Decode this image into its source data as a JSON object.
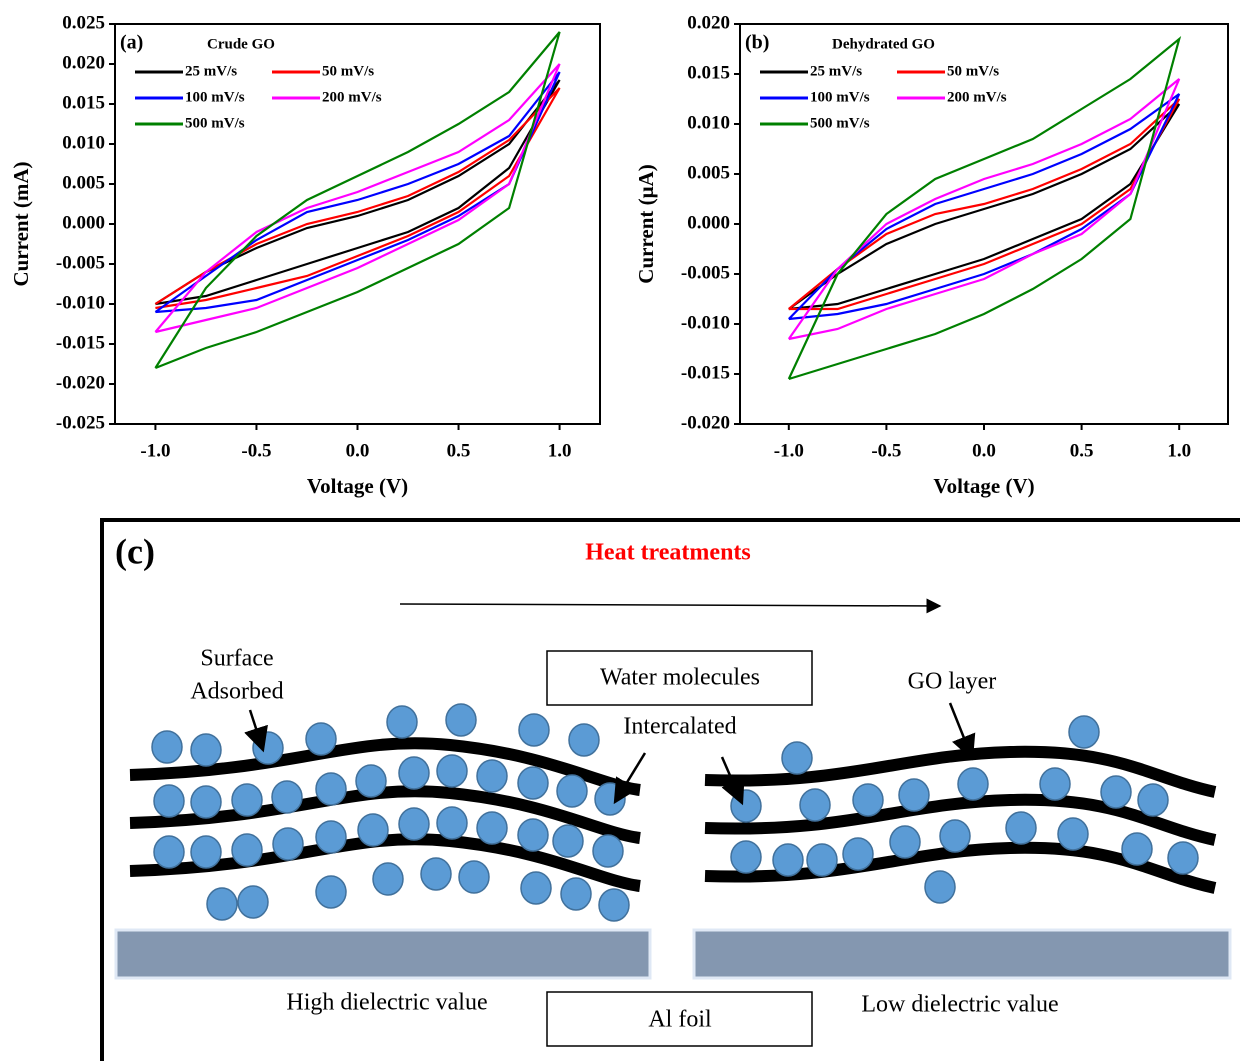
{
  "chart_data": [
    {
      "type": "line",
      "panel": "(a)",
      "title": "Crude GO",
      "x_label": "Voltage (V)",
      "y_label": "Current (mA)",
      "x": [
        -1,
        -0.75,
        -0.5,
        -0.25,
        0,
        0.25,
        0.5,
        0.75,
        1,
        0.75,
        0.5,
        0.25,
        0,
        -0.25,
        -0.5,
        -0.75,
        -1
      ],
      "xlim": [
        -1.2,
        1.2
      ],
      "ylim": [
        -0.025,
        0.025
      ],
      "xticks": [
        {
          "value": -1,
          "label": "-1.0"
        },
        {
          "value": -0.5,
          "label": "-0.5"
        },
        {
          "value": 0,
          "label": "0.0"
        },
        {
          "value": 0.5,
          "label": "0.5"
        },
        {
          "value": 1,
          "label": "1.0"
        }
      ],
      "yticks": [
        {
          "value": -0.025,
          "label": "-0.025"
        },
        {
          "value": -0.02,
          "label": "-0.020"
        },
        {
          "value": -0.015,
          "label": "-0.015"
        },
        {
          "value": -0.01,
          "label": "-0.010"
        },
        {
          "value": -0.005,
          "label": "-0.005"
        },
        {
          "value": 0,
          "label": "0.000"
        },
        {
          "value": 0.005,
          "label": "0.005"
        },
        {
          "value": 0.01,
          "label": "0.010"
        },
        {
          "value": 0.015,
          "label": "0.015"
        },
        {
          "value": 0.02,
          "label": "0.020"
        },
        {
          "value": 0.025,
          "label": "0.025"
        }
      ],
      "series": [
        {
          "name": "25 mV/s",
          "color": "#000000",
          "values": [
            -0.01,
            -0.006,
            -0.003,
            -0.0005,
            0.001,
            0.003,
            0.006,
            0.01,
            0.018,
            0.007,
            0.002,
            -0.001,
            -0.003,
            -0.005,
            -0.007,
            -0.009,
            -0.01
          ]
        },
        {
          "name": "50 mV/s",
          "color": "#ff0000",
          "values": [
            -0.01,
            -0.006,
            -0.0025,
            0,
            0.0015,
            0.0035,
            0.0065,
            0.0105,
            0.017,
            0.006,
            0.0015,
            -0.0015,
            -0.004,
            -0.0065,
            -0.008,
            -0.0095,
            -0.0105
          ]
        },
        {
          "name": "100 mV/s",
          "color": "#0000ff",
          "values": [
            -0.011,
            -0.0065,
            -0.002,
            0.0015,
            0.003,
            0.005,
            0.0075,
            0.011,
            0.019,
            0.005,
            0.001,
            -0.002,
            -0.0045,
            -0.007,
            -0.0095,
            -0.0105,
            -0.011
          ]
        },
        {
          "name": "200 mV/s",
          "color": "#ff00ff",
          "values": [
            -0.0135,
            -0.006,
            -0.001,
            0.002,
            0.004,
            0.0065,
            0.009,
            0.013,
            0.02,
            0.005,
            0.0005,
            -0.0025,
            -0.0055,
            -0.008,
            -0.0105,
            -0.012,
            -0.0135
          ]
        },
        {
          "name": "500 mV/s",
          "color": "#008000",
          "values": [
            -0.018,
            -0.008,
            -0.0015,
            0.003,
            0.006,
            0.009,
            0.0125,
            0.0165,
            0.024,
            0.002,
            -0.0025,
            -0.0055,
            -0.0085,
            -0.011,
            -0.0135,
            -0.0155,
            -0.018
          ]
        }
      ]
    },
    {
      "type": "line",
      "panel": "(b)",
      "title": "Dehydrated GO",
      "x_label": "Voltage (V)",
      "y_label": "Current (μA)",
      "x": [
        -1,
        -0.75,
        -0.5,
        -0.25,
        0,
        0.25,
        0.5,
        0.75,
        1,
        0.75,
        0.5,
        0.25,
        0,
        -0.25,
        -0.5,
        -0.75,
        -1
      ],
      "xlim": [
        -1.25,
        1.25
      ],
      "ylim": [
        -0.02,
        0.02
      ],
      "xticks": [
        {
          "value": -1,
          "label": "-1.0"
        },
        {
          "value": -0.5,
          "label": "-0.5"
        },
        {
          "value": 0,
          "label": "0.0"
        },
        {
          "value": 0.5,
          "label": "0.5"
        },
        {
          "value": 1,
          "label": "1.0"
        }
      ],
      "yticks": [
        {
          "value": -0.02,
          "label": "-0.020"
        },
        {
          "value": -0.015,
          "label": "-0.015"
        },
        {
          "value": -0.01,
          "label": "-0.010"
        },
        {
          "value": -0.005,
          "label": "-0.005"
        },
        {
          "value": 0,
          "label": "0.000"
        },
        {
          "value": 0.005,
          "label": "0.005"
        },
        {
          "value": 0.01,
          "label": "0.010"
        },
        {
          "value": 0.015,
          "label": "0.015"
        },
        {
          "value": 0.02,
          "label": "0.020"
        }
      ],
      "series": [
        {
          "name": "25 mV/s",
          "color": "#000000",
          "values": [
            -0.0085,
            -0.005,
            -0.002,
            0,
            0.0015,
            0.003,
            0.005,
            0.0075,
            0.012,
            0.004,
            0.0005,
            -0.0015,
            -0.0035,
            -0.005,
            -0.0065,
            -0.008,
            -0.0085
          ]
        },
        {
          "name": "50 mV/s",
          "color": "#ff0000",
          "values": [
            -0.0085,
            -0.0045,
            -0.001,
            0.001,
            0.002,
            0.0035,
            0.0055,
            0.008,
            0.0125,
            0.0035,
            0,
            -0.002,
            -0.004,
            -0.0055,
            -0.007,
            -0.0085,
            -0.0085
          ]
        },
        {
          "name": "100 mV/s",
          "color": "#0000ff",
          "values": [
            -0.0095,
            -0.0045,
            -0.0005,
            0.002,
            0.0035,
            0.005,
            0.007,
            0.0095,
            0.013,
            0.003,
            -0.0005,
            -0.003,
            -0.005,
            -0.0065,
            -0.008,
            -0.009,
            -0.0095
          ]
        },
        {
          "name": "200 mV/s",
          "color": "#ff00ff",
          "values": [
            -0.0115,
            -0.0045,
            0,
            0.0025,
            0.0045,
            0.006,
            0.008,
            0.0105,
            0.0145,
            0.003,
            -0.001,
            -0.003,
            -0.0055,
            -0.007,
            -0.0085,
            -0.0105,
            -0.0115
          ]
        },
        {
          "name": "500 mV/s",
          "color": "#008000",
          "values": [
            -0.0155,
            -0.005,
            0.001,
            0.0045,
            0.0065,
            0.0085,
            0.0115,
            0.0145,
            0.0185,
            0.0005,
            -0.0035,
            -0.0065,
            -0.009,
            -0.011,
            -0.0125,
            -0.014,
            -0.0155
          ]
        }
      ]
    }
  ],
  "diagram": {
    "panel_label": "(c)",
    "title": "Heat treatments",
    "surface_label": [
      "Surface",
      "Adsorbed"
    ],
    "water_label": "Water molecules",
    "intercalated_label": "Intercalated",
    "go_label": "GO layer",
    "high_label": "High dielectric  value",
    "foil_label": "Al foil",
    "low_label": "Low dielectric  value"
  }
}
